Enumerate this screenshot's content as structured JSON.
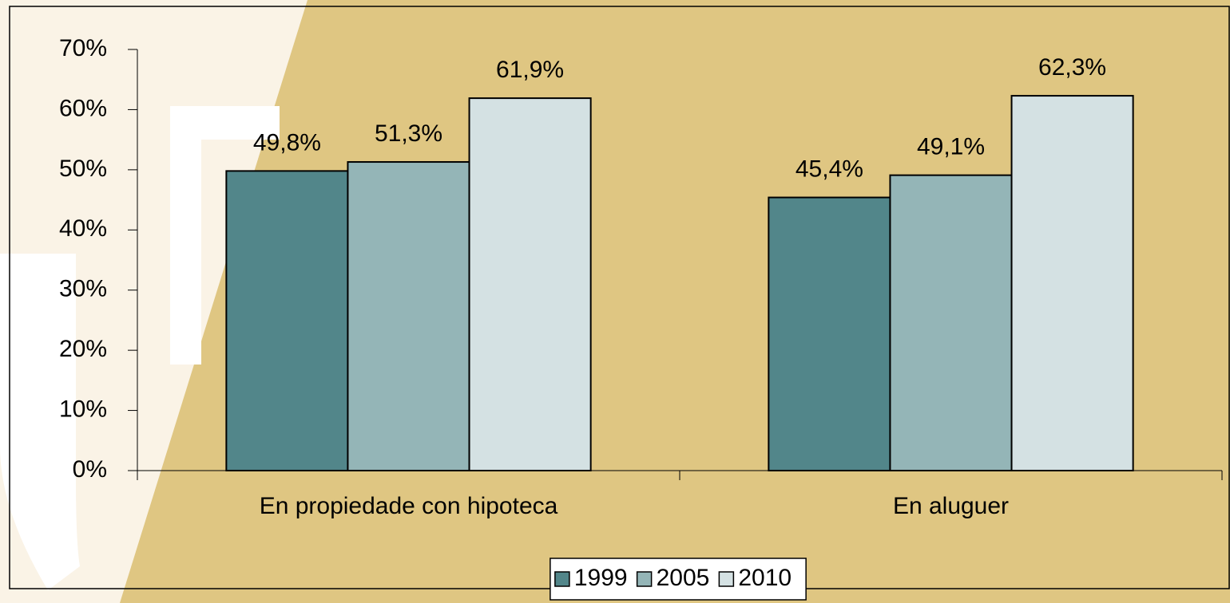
{
  "chart_data": {
    "type": "bar",
    "categories": [
      "En propiedade con hipoteca",
      "En aluguer"
    ],
    "series": [
      {
        "name": "1999",
        "color": "#52868a",
        "values": [
          49.8,
          45.4
        ],
        "value_labels": [
          "49,8%",
          "45,4%"
        ]
      },
      {
        "name": "2005",
        "color": "#94b5b7",
        "values": [
          51.3,
          49.1
        ],
        "value_labels": [
          "51,3%",
          "49,1%"
        ]
      },
      {
        "name": "2010",
        "color": "#d4e1e3",
        "values": [
          61.9,
          62.3
        ],
        "value_labels": [
          "61,9%",
          "62,3%"
        ]
      }
    ],
    "ylim": [
      0,
      70
    ],
    "yticks": [
      {
        "value": 0,
        "label": "0%"
      },
      {
        "value": 10,
        "label": "10%"
      },
      {
        "value": 20,
        "label": "20%"
      },
      {
        "value": 30,
        "label": "30%"
      },
      {
        "value": 40,
        "label": "40%"
      },
      {
        "value": 50,
        "label": "50%"
      },
      {
        "value": 60,
        "label": "60%"
      },
      {
        "value": 70,
        "label": "70%"
      }
    ],
    "legend": "bottom"
  }
}
